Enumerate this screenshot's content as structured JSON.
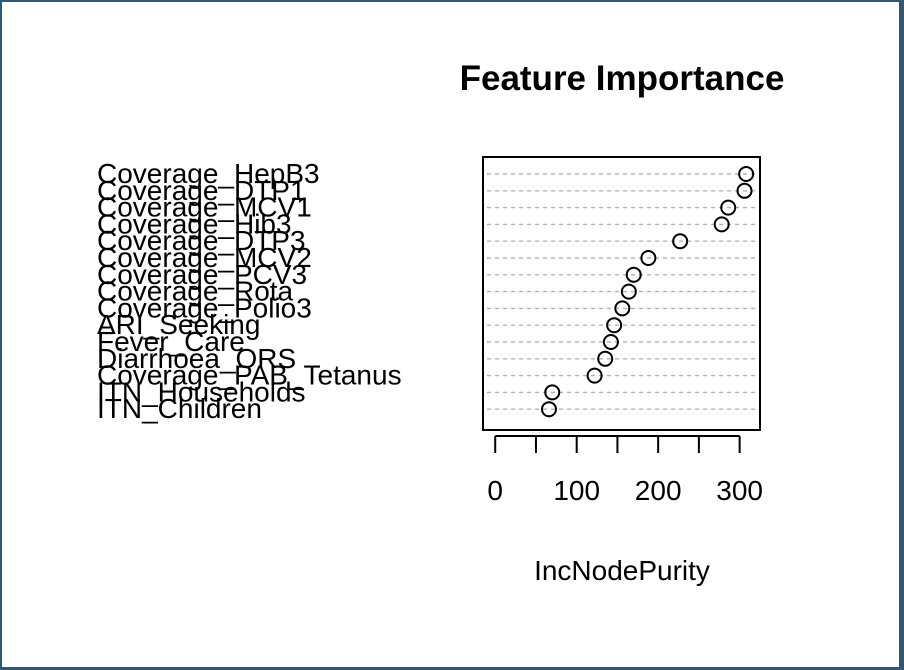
{
  "chart_data": {
    "type": "scatter",
    "title": "Feature Importance",
    "xlabel": "IncNodePurity",
    "ylabel": "",
    "xlim": [
      -15,
      325
    ],
    "xticks": [
      0,
      50,
      100,
      150,
      200,
      250,
      300
    ],
    "xtick_labels": [
      "0",
      "100",
      "200",
      "300"
    ],
    "grid": true,
    "categories": [
      "Coverage_HepB3",
      "Coverage_DTP1",
      "Coverage_MCV1",
      "Coverage_Hib3",
      "Coverage_DTP3",
      "Coverage_MCV2",
      "Coverage_PCV3",
      "Coverage_Rota",
      "Coverage_Polio3",
      "ARI_Seeking",
      "Fever_Care",
      "Diarrhoea_ORS",
      "Coverage_PAB_Tetanus",
      "ITN_Households",
      "ITN_Children"
    ],
    "values": [
      308,
      306,
      286,
      278,
      227,
      188,
      170,
      164,
      156,
      146,
      142,
      135,
      122,
      70,
      66
    ]
  }
}
